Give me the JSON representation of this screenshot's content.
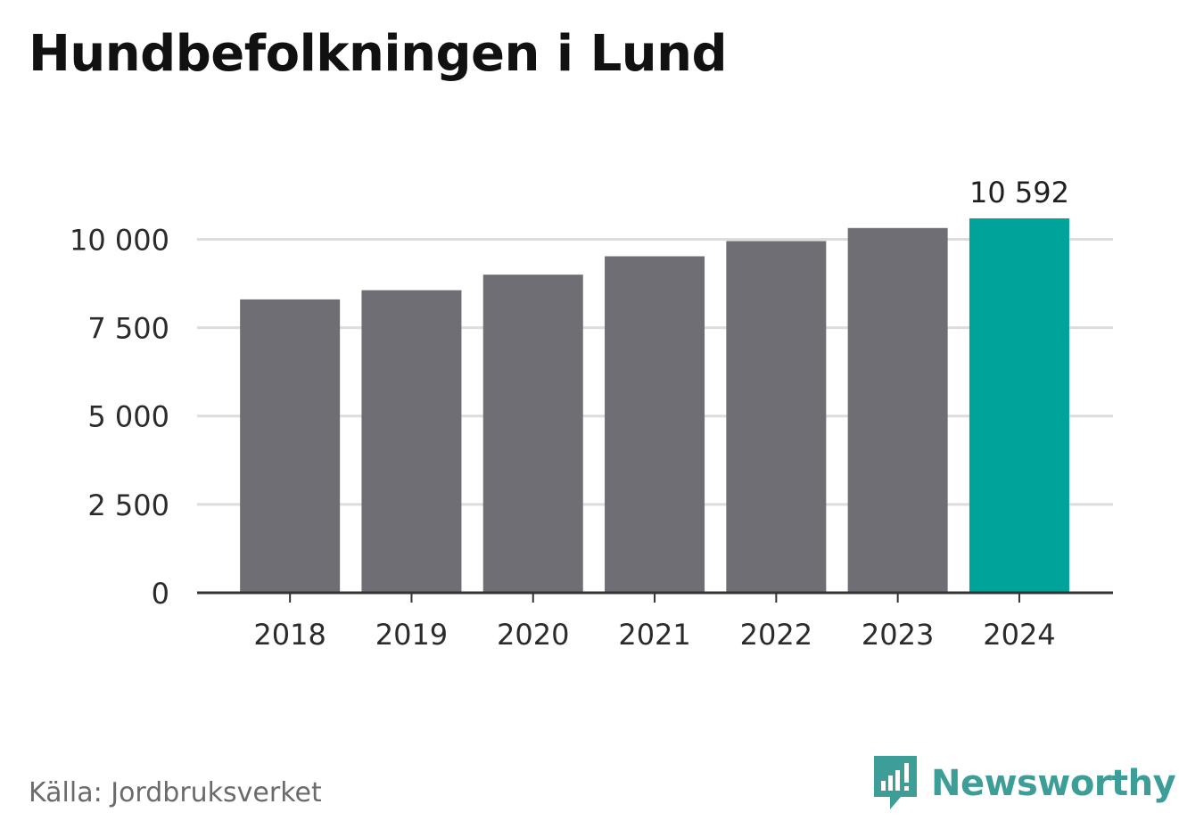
{
  "title": "Hundbefolkningen i Lund",
  "source": "Källa: Jordbruksverket",
  "brand": {
    "name": "Newsworthy",
    "logo_icon": "newsworthy-chart-bubble-icon"
  },
  "colors": {
    "bar": "#6f6e74",
    "highlight": "#00a39a",
    "grid": "#dddddd",
    "axis": "#333333",
    "brand": "#3d9e97"
  },
  "chart_data": {
    "type": "bar",
    "categories": [
      "2018",
      "2019",
      "2020",
      "2021",
      "2022",
      "2023",
      "2024"
    ],
    "values": [
      8300,
      8560,
      9000,
      9520,
      9950,
      10320,
      10592
    ],
    "highlight_index": 6,
    "data_labels": [
      {
        "index": 6,
        "text": "10 592"
      }
    ],
    "yticks": [
      0,
      2500,
      5000,
      7500,
      10000
    ],
    "ytick_labels": [
      "0",
      "2 500",
      "5 000",
      "7 500",
      "10 000"
    ],
    "ylim": [
      0,
      10592
    ],
    "grid": true,
    "xlabel": "",
    "ylabel": ""
  }
}
